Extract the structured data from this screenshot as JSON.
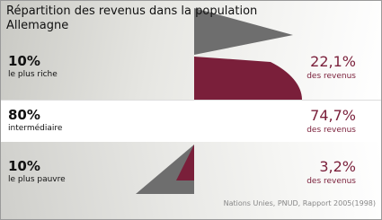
{
  "title": "Répartition des revenus dans la population",
  "country": "Allemagne",
  "rows": [
    {
      "share": "10%",
      "group": "le plus riche",
      "income": "22,1%",
      "income_label": "des revenus"
    },
    {
      "share": "80%",
      "group": "intermédiaire",
      "income": "74,7%",
      "income_label": "des revenus"
    },
    {
      "share": "10%",
      "group": "le plus pauvre",
      "income": "3,2%",
      "income_label": "des revenus"
    }
  ],
  "source": "Nations Unies, PNUD, Rapport 2005(1998)"
}
